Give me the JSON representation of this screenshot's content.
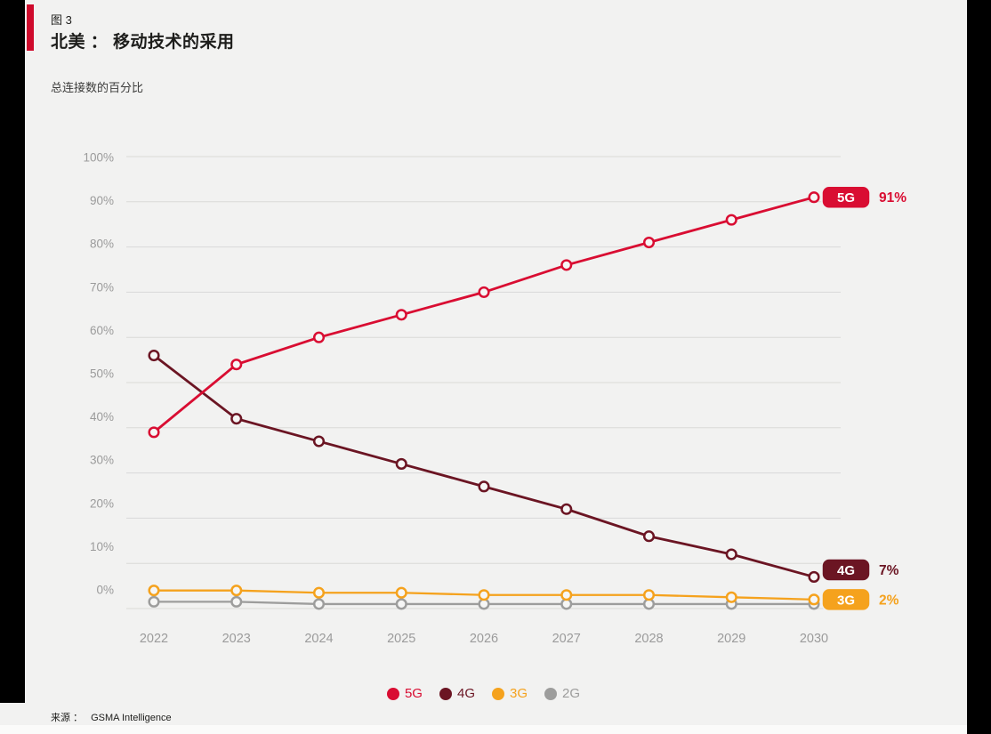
{
  "page": {
    "figure_label": "图 3",
    "title": "北美 ：  移动技术的采用",
    "subtitle": "总连接数的百分比",
    "source_label": "来源 ：",
    "source_value": "GSMA Intelligence"
  },
  "colors": {
    "background": "#f2f2f1",
    "accent_bar": "#cf0a2c",
    "grid_line": "#d9d9d8",
    "axis_text": "#9b9b9b",
    "series_5g": "#d90d32",
    "series_4g": "#6b1523",
    "series_3g": "#f5a21d",
    "series_2g": "#9d9d9c"
  },
  "chart_data": {
    "type": "line",
    "title": "北美 ：  移动技术的采用",
    "subtitle": "总连接数的百分比",
    "xlabel": "",
    "ylabel": "总连接数的百分比",
    "ylim": [
      0,
      100
    ],
    "grid": "horizontal",
    "marker": "open-circle",
    "legend_position": "bottom",
    "categories": [
      "2022",
      "2023",
      "2024",
      "2025",
      "2026",
      "2027",
      "2028",
      "2029",
      "2030"
    ],
    "yticks": [
      "100%",
      "90%",
      "80%",
      "70%",
      "60%",
      "50%",
      "40%",
      "30%",
      "20%",
      "10%",
      "0%"
    ],
    "series": [
      {
        "name": "2G",
        "color": "#9d9d9c",
        "values": [
          1.5,
          1.5,
          1,
          1,
          1,
          1,
          1,
          1,
          1
        ],
        "end_badge": null,
        "end_value": null
      },
      {
        "name": "3G",
        "color": "#f5a21d",
        "values": [
          4,
          4,
          3.5,
          3.5,
          3,
          3,
          3,
          2.5,
          2
        ],
        "end_badge": "3G",
        "end_value": "2%"
      },
      {
        "name": "4G",
        "color": "#6b1523",
        "values": [
          56,
          42,
          37,
          32,
          27,
          22,
          16,
          12,
          7
        ],
        "end_badge": "4G",
        "end_value": "7%"
      },
      {
        "name": "5G",
        "color": "#d90d32",
        "values": [
          39,
          54,
          60,
          65,
          70,
          76,
          81,
          86,
          91
        ],
        "end_badge": "5G",
        "end_value": "91%"
      }
    ],
    "legend_order": [
      "5G",
      "4G",
      "3G",
      "2G"
    ]
  }
}
